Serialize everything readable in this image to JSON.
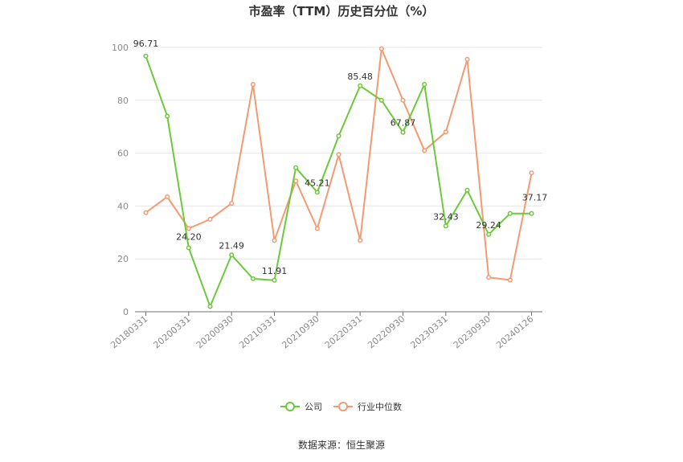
{
  "chart_data": {
    "type": "line",
    "title": "市盈率（TTM）历史百分位（%）",
    "source": "数据来源：恒生聚源",
    "ylim": [
      0,
      100
    ],
    "yticks": [
      0,
      20,
      40,
      60,
      80,
      100
    ],
    "xtick_labels": [
      "20180331",
      "20200331",
      "20200930",
      "20210331",
      "20210930",
      "20220331",
      "20220930",
      "20230331",
      "20230930",
      "20240126"
    ],
    "xtick_indices": [
      0,
      2,
      4,
      6,
      8,
      10,
      12,
      14,
      16,
      18
    ],
    "grid": true,
    "legend_position": "bottom",
    "series": [
      {
        "name": "公司",
        "color": "#6cc93a",
        "values": [
          96.71,
          74,
          24.2,
          2,
          21.49,
          12.5,
          11.91,
          54.5,
          45.21,
          66.5,
          85.48,
          80,
          67.87,
          86,
          32.43,
          46,
          29.24,
          37.17,
          37.17
        ],
        "labels": {
          "0": "96.71",
          "2": "24.20",
          "4": "21.49",
          "6": "11.91",
          "8": "45.21",
          "10": "85.48",
          "12": "67.87",
          "14": "32.43",
          "16": "29.24",
          "18": "37.17"
        }
      },
      {
        "name": "行业中位数",
        "color": "#f39a72",
        "values": [
          37.5,
          43.5,
          31.5,
          35,
          41,
          86,
          27,
          49.5,
          31.5,
          59.5,
          27,
          99.5,
          80,
          61,
          68,
          95.5,
          13,
          12,
          52.5
        ]
      }
    ]
  }
}
